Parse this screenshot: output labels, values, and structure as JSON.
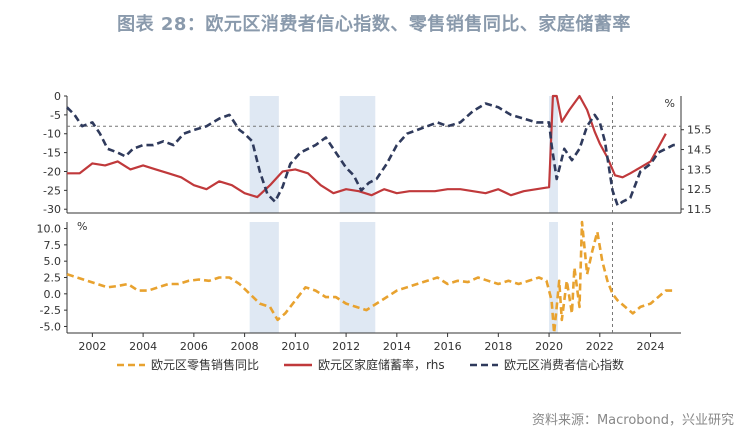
{
  "title": "图表 28：欧元区消费者信心指数、零售销售同比、家庭储蓄率",
  "source": "资料来源：Macrobond，兴业研究",
  "chart_data": [
    {
      "type": "line",
      "panel": "top",
      "x_range": [
        2001.0,
        2025.2
      ],
      "y_left": {
        "lim": [
          -31,
          0
        ],
        "ticks": [
          0,
          -5,
          -10,
          -15,
          -20,
          -25,
          -30
        ],
        "tick_labels": [
          "0",
          "-5",
          "-10",
          "-15",
          "-20",
          "-25",
          "-30"
        ]
      },
      "y_right": {
        "unit": "%",
        "lim": [
          11.3,
          17.2
        ],
        "ticks": [
          11.5,
          12.5,
          13.5,
          14.5,
          15.5
        ],
        "tick_labels": [
          "11.5",
          "12.5",
          "13.5",
          "14.5",
          "15.5"
        ]
      },
      "reference_lines": [
        {
          "axis": "left",
          "y": -8,
          "style": "dashed"
        },
        {
          "axis": "x",
          "x": 2022.5,
          "style": "dashed"
        }
      ],
      "shaded_periods": [
        [
          2008.2,
          2009.35
        ],
        [
          2011.75,
          2013.15
        ],
        [
          2020.0,
          2020.35
        ]
      ],
      "series": [
        {
          "name": "欧元区消费者信心指数",
          "axis": "left",
          "color": "#2f3a5c",
          "style": "dashed",
          "x": [
            2001.0,
            2001.3,
            2001.6,
            2002.0,
            2002.3,
            2002.6,
            2003.0,
            2003.3,
            2003.6,
            2004.0,
            2004.4,
            2004.8,
            2005.2,
            2005.6,
            2006.0,
            2006.5,
            2007.0,
            2007.4,
            2007.8,
            2008.0,
            2008.3,
            2008.6,
            2008.9,
            2009.2,
            2009.5,
            2009.8,
            2010.2,
            2010.5,
            2010.8,
            2011.2,
            2011.6,
            2012.0,
            2012.3,
            2012.6,
            2012.9,
            2013.2,
            2013.6,
            2014.0,
            2014.4,
            2014.8,
            2015.2,
            2015.6,
            2016.0,
            2016.5,
            2017.0,
            2017.5,
            2018.0,
            2018.5,
            2019.0,
            2019.5,
            2020.0,
            2020.1,
            2020.3,
            2020.6,
            2020.9,
            2021.2,
            2021.5,
            2021.8,
            2022.0,
            2022.2,
            2022.5,
            2022.7,
            2022.9,
            2023.2,
            2023.6,
            2024.0,
            2024.3,
            2024.6,
            2024.9,
            2025.1
          ],
          "y": [
            -3,
            -5,
            -8,
            -7,
            -10,
            -14,
            -15,
            -16,
            -14,
            -13,
            -13,
            -12,
            -13,
            -10,
            -9,
            -8,
            -6,
            -5,
            -9,
            -10,
            -12,
            -20,
            -26,
            -28,
            -24,
            -18,
            -15,
            -14,
            -13,
            -11,
            -15,
            -19,
            -21,
            -25,
            -23,
            -22,
            -18,
            -13,
            -10,
            -9,
            -8,
            -7,
            -8,
            -7,
            -4,
            -2,
            -3,
            -5,
            -6,
            -7,
            -7,
            -13,
            -22,
            -14,
            -17,
            -14,
            -8,
            -5,
            -7,
            -12,
            -25,
            -29,
            -28,
            -27,
            -20,
            -18,
            -15,
            -14,
            -13,
            -13
          ]
        },
        {
          "name": "欧元区家庭储蓄率，rhs",
          "axis": "right",
          "color": "#c0393b",
          "style": "solid",
          "x": [
            2001.0,
            2001.5,
            2002.0,
            2002.5,
            2003.0,
            2003.5,
            2004.0,
            2004.5,
            2005.0,
            2005.5,
            2006.0,
            2006.5,
            2007.0,
            2007.5,
            2008.0,
            2008.5,
            2009.0,
            2009.5,
            2010.0,
            2010.5,
            2011.0,
            2011.5,
            2012.0,
            2012.5,
            2013.0,
            2013.5,
            2014.0,
            2014.5,
            2015.0,
            2015.5,
            2016.0,
            2016.5,
            2017.0,
            2017.5,
            2018.0,
            2018.5,
            2019.0,
            2019.5,
            2020.0,
            2020.15,
            2020.3,
            2020.5,
            2020.8,
            2021.2,
            2021.5,
            2021.8,
            2022.0,
            2022.3,
            2022.6,
            2022.9,
            2023.2,
            2023.6,
            2024.0,
            2024.3,
            2024.6
          ],
          "y": [
            13.3,
            13.3,
            13.8,
            13.7,
            13.9,
            13.5,
            13.7,
            13.5,
            13.3,
            13.1,
            12.7,
            12.5,
            12.9,
            12.7,
            12.3,
            12.1,
            12.7,
            13.4,
            13.5,
            13.3,
            12.7,
            12.3,
            12.5,
            12.4,
            12.2,
            12.5,
            12.3,
            12.4,
            12.4,
            12.4,
            12.5,
            12.5,
            12.4,
            12.3,
            12.5,
            12.2,
            12.4,
            12.5,
            12.6,
            17.2,
            17.2,
            15.9,
            16.5,
            17.2,
            16.5,
            15.4,
            14.8,
            14.1,
            13.2,
            13.1,
            13.3,
            13.6,
            13.9,
            14.6,
            15.3
          ]
        }
      ]
    },
    {
      "type": "line",
      "panel": "bottom",
      "x_range": [
        2001.0,
        2025.2
      ],
      "y_left": {
        "unit": "%",
        "lim": [
          -6,
          11
        ],
        "ticks": [
          10,
          7.5,
          5,
          2.5,
          0,
          -2.5,
          -5
        ],
        "tick_labels": [
          "10.0",
          "7.5",
          "5.0",
          "2.5",
          "0.0",
          "-2.5",
          "-5.0"
        ]
      },
      "reference_lines": [
        {
          "axis": "x",
          "x": 2022.5,
          "style": "dashed"
        }
      ],
      "shaded_periods": [
        [
          2008.2,
          2009.35
        ],
        [
          2011.75,
          2013.15
        ],
        [
          2020.0,
          2020.35
        ]
      ],
      "series": [
        {
          "name": "欧元区零售销售同比",
          "axis": "left",
          "color": "#e8a22f",
          "style": "dashed",
          "x": [
            2001.0,
            2001.4,
            2001.8,
            2002.2,
            2002.6,
            2003.0,
            2003.4,
            2003.8,
            2004.2,
            2004.6,
            2005.0,
            2005.4,
            2005.8,
            2006.2,
            2006.6,
            2007.0,
            2007.4,
            2007.8,
            2008.2,
            2008.6,
            2009.0,
            2009.3,
            2009.6,
            2010.0,
            2010.4,
            2010.8,
            2011.2,
            2011.6,
            2012.0,
            2012.4,
            2012.8,
            2013.2,
            2013.6,
            2014.0,
            2014.4,
            2014.8,
            2015.2,
            2015.6,
            2016.0,
            2016.4,
            2016.8,
            2017.2,
            2017.6,
            2018.0,
            2018.4,
            2018.8,
            2019.2,
            2019.6,
            2019.9,
            2020.1,
            2020.2,
            2020.3,
            2020.4,
            2020.5,
            2020.7,
            2020.9,
            2021.0,
            2021.2,
            2021.3,
            2021.5,
            2021.7,
            2021.9,
            2022.1,
            2022.3,
            2022.5,
            2022.7,
            2023.0,
            2023.3,
            2023.6,
            2024.0,
            2024.3,
            2024.6,
            2024.9
          ],
          "y": [
            3.0,
            2.5,
            2.0,
            1.5,
            1.0,
            1.2,
            1.5,
            0.5,
            0.5,
            1.0,
            1.5,
            1.5,
            2.0,
            2.2,
            2.0,
            2.5,
            2.5,
            1.5,
            0.0,
            -1.5,
            -2.0,
            -4.0,
            -3.0,
            -1.0,
            1.0,
            0.5,
            -0.5,
            -0.5,
            -1.5,
            -2.0,
            -2.5,
            -1.5,
            -0.5,
            0.5,
            1.0,
            1.5,
            2.0,
            2.5,
            1.5,
            2.0,
            1.8,
            2.5,
            2.0,
            1.5,
            2.0,
            1.5,
            2.0,
            2.5,
            2.0,
            -1.0,
            -7.0,
            -2.0,
            2.0,
            -4.0,
            2.0,
            -3.0,
            4.0,
            -2.0,
            11.0,
            3.0,
            6.5,
            9.5,
            5.0,
            2.0,
            0.0,
            -1.0,
            -2.0,
            -3.0,
            -2.0,
            -1.5,
            -0.5,
            0.5,
            0.5
          ]
        }
      ]
    }
  ],
  "x_ticks": [
    2002,
    2004,
    2006,
    2008,
    2010,
    2012,
    2014,
    2016,
    2018,
    2020,
    2022,
    2024
  ],
  "x_tick_labels": [
    "2002",
    "2004",
    "2006",
    "2008",
    "2010",
    "2012",
    "2014",
    "2016",
    "2018",
    "2020",
    "2022",
    "2024"
  ],
  "legend": {
    "placement": "bottom",
    "items": [
      {
        "label": "欧元区零售销售同比",
        "color": "#e8a22f",
        "style": "dashed"
      },
      {
        "label": "欧元区家庭储蓄率，rhs",
        "color": "#c0393b",
        "style": "solid"
      },
      {
        "label": "欧元区消费者信心指数",
        "color": "#2f3a5c",
        "style": "dashed"
      }
    ]
  }
}
